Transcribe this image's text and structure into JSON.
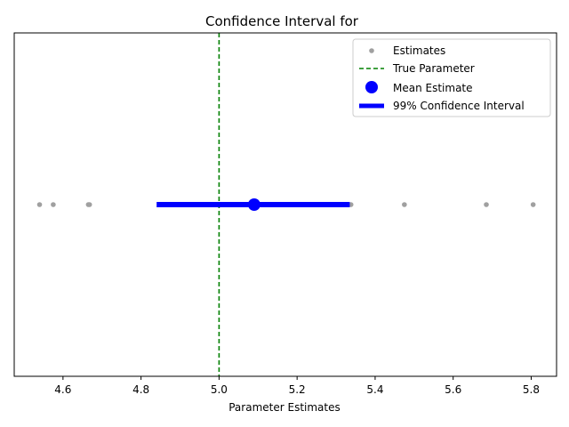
{
  "chart_data": {
    "type": "scatter",
    "title": "Confidence Interval for",
    "xlabel": "Parameter Estimates",
    "ylabel": "",
    "xlim": [
      4.475,
      5.865
    ],
    "xticks": [
      4.6,
      4.8,
      5.0,
      5.2,
      5.4,
      5.6,
      5.8
    ],
    "xtick_labels": [
      "4.6",
      "4.8",
      "5.0",
      "5.2",
      "5.4",
      "5.6",
      "5.8"
    ],
    "grid": false,
    "legend_position": "top-right",
    "series": [
      {
        "name": "Estimates",
        "kind": "points",
        "color": "#a0a0a0",
        "x": [
          4.54,
          4.575,
          4.665,
          4.668,
          5.338,
          5.475,
          5.685,
          5.805
        ]
      },
      {
        "name": "True Parameter",
        "kind": "vline",
        "color": "#008000",
        "x": 5.0
      },
      {
        "name": "Mean Estimate",
        "kind": "point",
        "color": "#0000ff",
        "x": 5.09
      },
      {
        "name": "99% Confidence Interval",
        "kind": "interval",
        "color": "#0000ff",
        "low": 4.84,
        "high": 5.335
      }
    ]
  }
}
